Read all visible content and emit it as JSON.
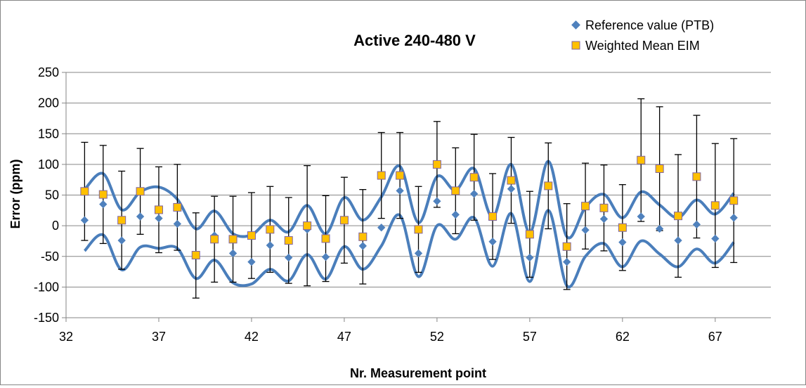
{
  "chart_data": {
    "type": "scatter",
    "title": "Active 240-480 V",
    "xlabel": "Nr.  Measurement point",
    "ylabel": "Error (ppm)",
    "xlim": [
      32,
      70
    ],
    "ylim": [
      -150,
      250
    ],
    "x_ticks": [
      "32",
      "37",
      "42",
      "47",
      "52",
      "57",
      "62",
      "67"
    ],
    "y_ticks": [
      "250",
      "200",
      "150",
      "100",
      "50",
      "0",
      "-50",
      "-100",
      "-150"
    ],
    "grid": "horizontal",
    "legend_position": "top-right",
    "colors": {
      "reference": "#4f81bd",
      "weighted_mean": "#ffc000",
      "weighted_mean_border": "#8064a2",
      "band": "#4a7ebb",
      "error_bar": "#000000",
      "gridline": "#868686"
    },
    "x": [
      33,
      34,
      35,
      36,
      37,
      38,
      39,
      40,
      41,
      42,
      43,
      44,
      45,
      46,
      47,
      48,
      49,
      50,
      51,
      52,
      53,
      54,
      55,
      56,
      57,
      58,
      59,
      60,
      61,
      62,
      63,
      64,
      65,
      66,
      67,
      68
    ],
    "series": [
      {
        "name": "Reference value (PTB)",
        "marker": "diamond",
        "values": [
          9,
          35,
          -24,
          15,
          12,
          3,
          -47,
          -16,
          -45,
          -59,
          -32,
          -52,
          -6,
          -51,
          8,
          -33,
          -3,
          57,
          -45,
          40,
          18,
          52,
          -26,
          60,
          -52,
          65,
          -59,
          -7,
          11,
          -27,
          15,
          -5,
          -24,
          2,
          -21,
          13
        ]
      },
      {
        "name": "Weighted Mean EIM",
        "marker": "square",
        "values": [
          56,
          51,
          9,
          56,
          26,
          30,
          -48,
          -22,
          -22,
          -16,
          -6,
          -24,
          0,
          -21,
          9,
          -18,
          82,
          82,
          -6,
          100,
          57,
          79,
          15,
          74,
          -14,
          65,
          -34,
          32,
          29,
          -3,
          107,
          93,
          16,
          80,
          33,
          41
        ],
        "error_upper": [
          136,
          131,
          89,
          126,
          96,
          100,
          21,
          48,
          48,
          54,
          64,
          46,
          98,
          49,
          79,
          59,
          152,
          152,
          64,
          170,
          127,
          149,
          85,
          144,
          56,
          135,
          36,
          102,
          99,
          67,
          207,
          194,
          116,
          180,
          134,
          142
        ],
        "error_lower": [
          -24,
          -29,
          -71,
          -14,
          -44,
          -40,
          -118,
          -92,
          -92,
          -86,
          -76,
          -94,
          -98,
          -91,
          -61,
          -95,
          12,
          12,
          -76,
          30,
          -13,
          9,
          -55,
          4,
          -84,
          -5,
          -104,
          -38,
          -41,
          -73,
          7,
          -8,
          -84,
          -20,
          -68,
          -60
        ]
      }
    ],
    "uncertainty_band": {
      "upper": [
        59,
        85,
        26,
        55,
        63,
        43,
        -5,
        24,
        -13,
        -15,
        9,
        -10,
        33,
        -13,
        46,
        9,
        47,
        97,
        5,
        80,
        58,
        93,
        14,
        100,
        -11,
        105,
        -18,
        30,
        51,
        13,
        55,
        34,
        13,
        42,
        19,
        53
      ],
      "lower": [
        -41,
        -15,
        -72,
        -35,
        -37,
        -37,
        -86,
        -56,
        -93,
        -95,
        -71,
        -90,
        -47,
        -87,
        -34,
        -71,
        -33,
        17,
        -83,
        0,
        -22,
        13,
        -66,
        20,
        -91,
        25,
        -98,
        -50,
        -29,
        -67,
        -25,
        -46,
        -67,
        -38,
        -61,
        -27
      ]
    }
  }
}
